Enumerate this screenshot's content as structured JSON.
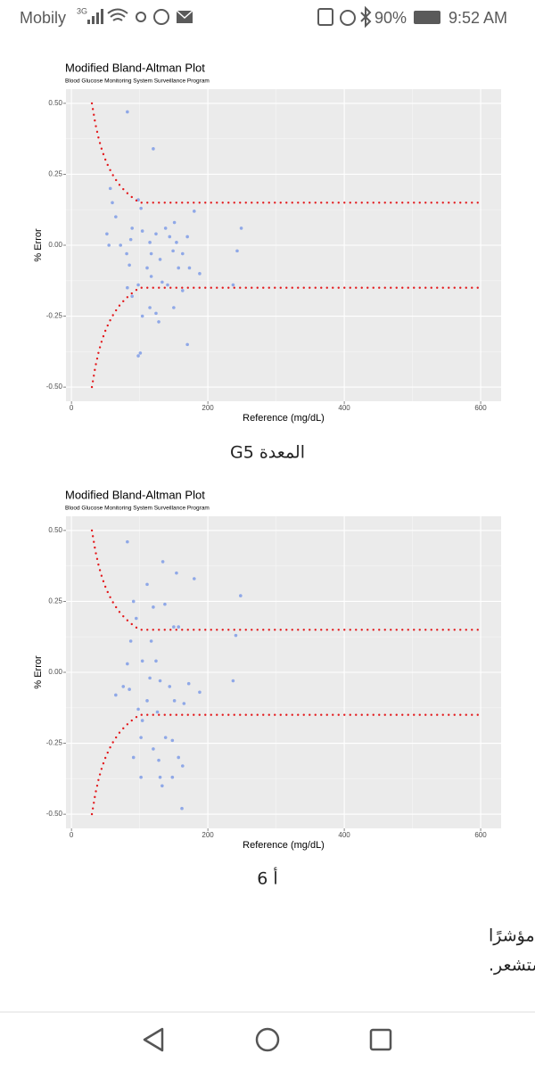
{
  "status_bar": {
    "carrier": "Mobily",
    "network": "3G",
    "battery": "90%",
    "time": "9:52 AM"
  },
  "chart_data": [
    {
      "type": "scatter",
      "title": "Modified Bland-Altman Plot",
      "subtitle": "Blood Glucose Monitoring System Surveillance Program",
      "x_label": "Reference (mg/dL)",
      "y_label": "% Error",
      "xlim": [
        -8,
        630
      ],
      "ylim": [
        -0.55,
        0.55
      ],
      "xticks": [
        0,
        200,
        400,
        600
      ],
      "yticks": [
        {
          "value": 0.5,
          "label": "0.50"
        },
        0.25,
        {
          "value": 0,
          "label": "0.00"
        },
        -0.25,
        {
          "value": -0.5,
          "label": "-0.50"
        }
      ],
      "x_minor_grid": [
        100,
        300,
        500
      ],
      "y_minor_grid": [
        0.375,
        0.125,
        -0.125,
        -0.375
      ],
      "grid": true,
      "series": [
        {
          "mark": "point",
          "color": "#7f9ce6",
          "x": [
            82,
            120,
            57,
            60,
            65,
            98,
            102,
            180,
            249,
            243,
            55,
            72,
            87,
            81,
            85,
            104,
            115,
            124,
            130,
            138,
            144,
            149,
            154,
            157,
            163,
            170,
            173,
            188,
            111,
            117,
            98,
            89,
            82,
            104,
            124,
            128,
            115,
            150,
            170,
            101,
            98,
            237,
            163,
            141,
            117,
            133,
            151,
            89,
            52
          ],
          "values": [
            0.47,
            0.34,
            0.2,
            0.15,
            0.1,
            0.16,
            0.13,
            0.12,
            0.06,
            -0.02,
            0,
            0,
            0.02,
            -0.03,
            -0.07,
            0.05,
            0.01,
            0.04,
            -0.05,
            0.06,
            0.03,
            -0.02,
            0.01,
            -0.08,
            -0.03,
            0.03,
            -0.08,
            -0.1,
            -0.08,
            -0.11,
            -0.14,
            -0.18,
            -0.15,
            -0.25,
            -0.24,
            -0.27,
            -0.22,
            -0.22,
            -0.35,
            -0.38,
            -0.39,
            -0.14,
            -0.16,
            -0.14,
            -0.03,
            -0.13,
            0.08,
            0.06,
            0.04
          ]
        },
        {
          "mark": "dotted-line",
          "color": "#e3191c",
          "x": [
            30,
            35,
            40,
            45,
            50,
            55,
            60,
            65,
            70,
            75,
            80,
            85,
            90,
            95,
            100,
            600
          ],
          "values": [
            0.5,
            0.429,
            0.375,
            0.333,
            0.3,
            0.273,
            0.25,
            0.231,
            0.214,
            0.2,
            0.188,
            0.176,
            0.167,
            0.158,
            0.15,
            0.15
          ]
        },
        {
          "mark": "dotted-line",
          "color": "#e3191c",
          "x": [
            30,
            35,
            40,
            45,
            50,
            55,
            60,
            65,
            70,
            75,
            80,
            85,
            90,
            95,
            100,
            600
          ],
          "values": [
            -0.5,
            -0.429,
            -0.375,
            -0.333,
            -0.3,
            -0.273,
            -0.25,
            -0.231,
            -0.214,
            -0.2,
            -0.188,
            -0.176,
            -0.167,
            -0.158,
            -0.15,
            -0.15
          ]
        }
      ]
    },
    {
      "type": "scatter",
      "title": "Modified Bland-Altman Plot",
      "subtitle": "Blood Glucose Monitoring System Surveillance Program",
      "x_label": "Reference (mg/dL)",
      "y_label": "% Error",
      "xlim": [
        -8,
        630
      ],
      "ylim": [
        -0.55,
        0.55
      ],
      "xticks": [
        0,
        200,
        400,
        600
      ],
      "yticks": [
        {
          "value": 0.5,
          "label": "0.50"
        },
        0.25,
        {
          "value": 0,
          "label": "0.00"
        },
        -0.25,
        {
          "value": -0.5,
          "label": "-0.50"
        }
      ],
      "x_minor_grid": [
        100,
        300,
        500
      ],
      "y_minor_grid": [
        0.375,
        0.125,
        -0.125,
        -0.375
      ],
      "grid": true,
      "series": [
        {
          "mark": "point",
          "color": "#7f9ce6",
          "x": [
            82,
            134,
            154,
            180,
            248,
            111,
            91,
            95,
            120,
            137,
            150,
            157,
            87,
            241,
            82,
            104,
            124,
            130,
            144,
            85,
            65,
            237,
            172,
            188,
            115,
            151,
            165,
            98,
            104,
            126,
            111,
            91,
            102,
            120,
            138,
            148,
            128,
            157,
            163,
            102,
            130,
            133,
            148,
            162,
            76,
            117
          ],
          "values": [
            0.46,
            0.39,
            0.35,
            0.33,
            0.27,
            0.31,
            0.25,
            0.19,
            0.23,
            0.24,
            0.16,
            0.16,
            0.11,
            0.13,
            0.03,
            0.04,
            0.04,
            -0.03,
            -0.05,
            -0.06,
            -0.08,
            -0.03,
            -0.04,
            -0.07,
            -0.02,
            -0.1,
            -0.11,
            -0.13,
            -0.17,
            -0.14,
            -0.1,
            -0.3,
            -0.23,
            -0.27,
            -0.23,
            -0.24,
            -0.31,
            -0.3,
            -0.33,
            -0.37,
            -0.37,
            -0.4,
            -0.37,
            -0.48,
            -0.05,
            0.11
          ]
        },
        {
          "mark": "dotted-line",
          "color": "#e3191c",
          "x": [
            30,
            35,
            40,
            45,
            50,
            55,
            60,
            65,
            70,
            75,
            80,
            85,
            90,
            95,
            100,
            600
          ],
          "values": [
            0.5,
            0.429,
            0.375,
            0.333,
            0.3,
            0.273,
            0.25,
            0.231,
            0.214,
            0.2,
            0.188,
            0.176,
            0.167,
            0.158,
            0.15,
            0.15
          ]
        },
        {
          "mark": "dotted-line",
          "color": "#e3191c",
          "x": [
            30,
            35,
            40,
            45,
            50,
            55,
            60,
            65,
            70,
            75,
            80,
            85,
            90,
            95,
            100,
            600
          ],
          "values": [
            -0.5,
            -0.429,
            -0.375,
            -0.333,
            -0.3,
            -0.273,
            -0.25,
            -0.231,
            -0.214,
            -0.2,
            -0.188,
            -0.176,
            -0.167,
            -0.158,
            -0.15,
            -0.15
          ]
        }
      ]
    }
  ],
  "captions": [
    "المعدة G5",
    "أ 6"
  ],
  "paragraph": [
    "في حين أن هذه لا تعطي مرجعًا مطلقًا ، فإنها ربما تعطي مؤشرًا",
    "أفضل عن مدى قرب نتائج اختبار الدم من نتائج المستشعر."
  ]
}
